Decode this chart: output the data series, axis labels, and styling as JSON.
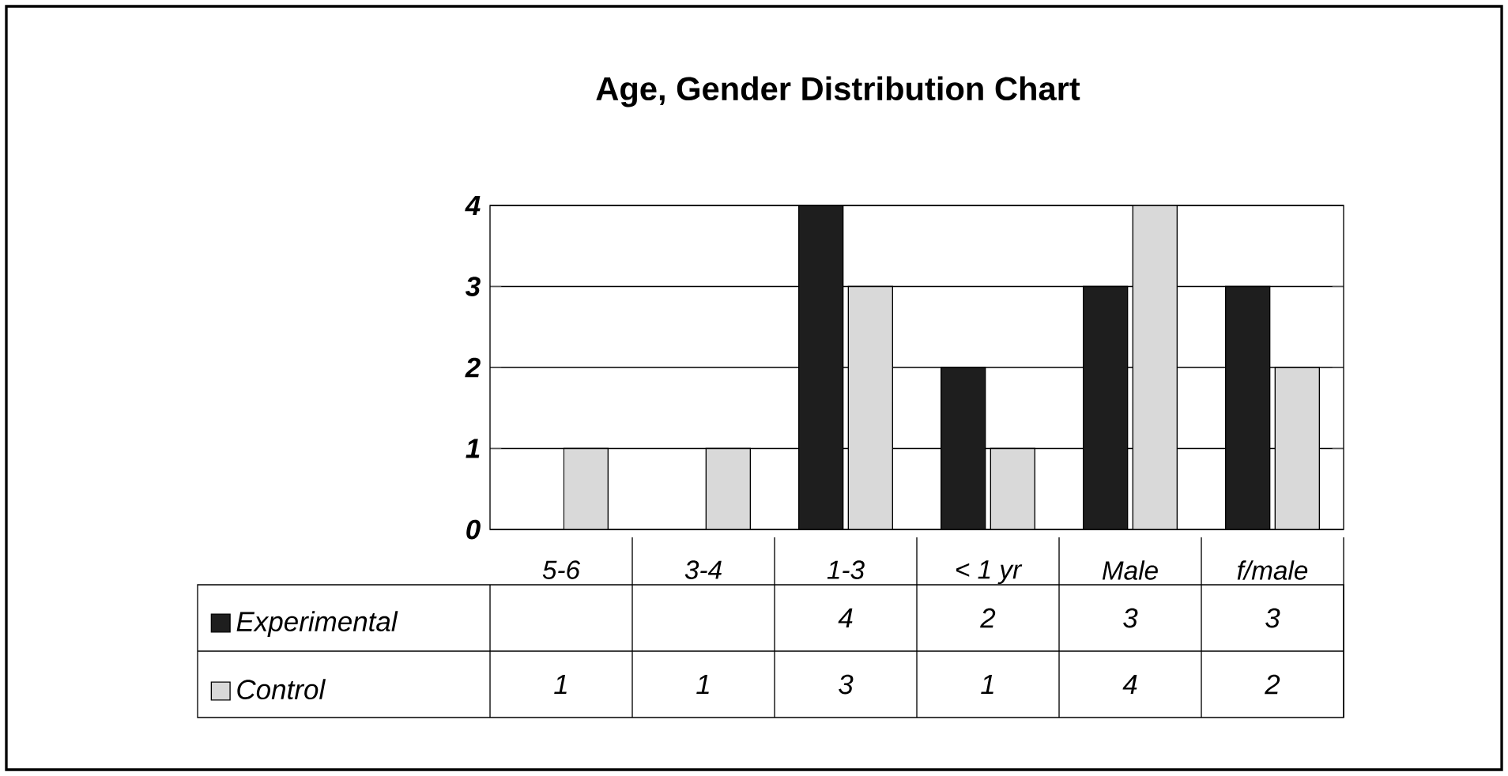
{
  "chart_data": {
    "type": "bar",
    "title": "Age, Gender Distribution Chart",
    "categories": [
      "5-6",
      "3-4",
      "1-3",
      "< 1 yr",
      "Male",
      "f/male"
    ],
    "series": [
      {
        "name": "Experimental",
        "color": "#1e1e1e",
        "values": [
          null,
          null,
          4,
          2,
          3,
          3
        ]
      },
      {
        "name": "Control",
        "color": "#d9d9d9",
        "values": [
          1,
          1,
          3,
          1,
          4,
          2
        ]
      }
    ],
    "ylim": [
      0,
      4
    ],
    "yticks": [
      0,
      1,
      2,
      3,
      4
    ],
    "grid": "y",
    "legend": "bottom",
    "data_labels": true
  }
}
